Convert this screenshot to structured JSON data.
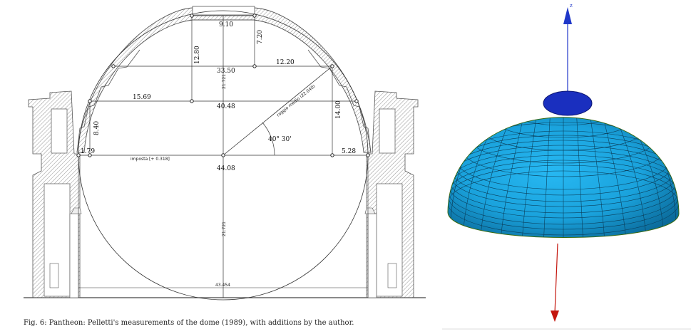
{
  "caption": "Fig. 6: Pantheon: Pelletti's measurements of the dome (1989), with additions by the author.",
  "measurements": {
    "top_span": "9.10",
    "cap_rise": "7.20",
    "upper_rise": "12.80",
    "upper_span": "33.50",
    "upper_half": "12.20",
    "mid_span": "40.48",
    "mid_left": "15.69",
    "right_rise": "14.00",
    "springing_span": "44.08",
    "left_rise": "8.40",
    "left_small": "1.79",
    "right_small": "5.28",
    "angle": "40° 30'",
    "radius_label": "raggio medio (22.040)",
    "imposta_label": "imposta [+ 0.318]",
    "axis_upper": "21.721",
    "axis_lower": "21.721",
    "floor_span": "43.454"
  },
  "axes": {
    "z_label": "z"
  },
  "colors": {
    "dome_fill": "#1aa7e0",
    "dome_dark": "#0b6d9e",
    "oculus": "#1a2fbf",
    "z_axis_up": "#1f37c9",
    "z_axis_down": "#c4160e",
    "rim": "#3a6a10"
  }
}
